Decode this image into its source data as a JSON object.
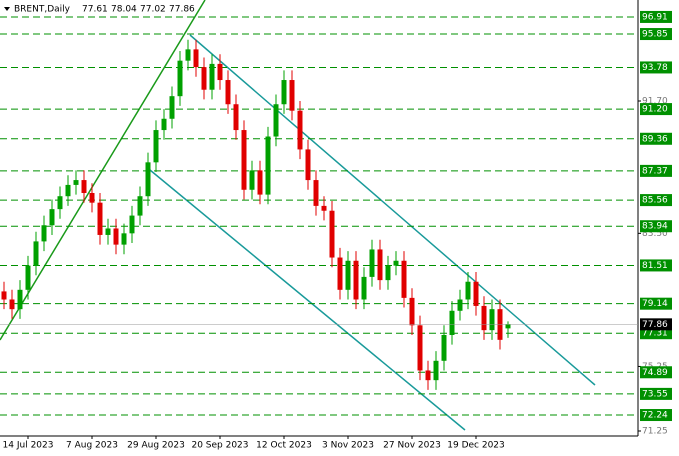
{
  "chart_data": {
    "type": "candlestick",
    "title": "BRENT,Daily",
    "categories": [
      null,
      null,
      null,
      "14 Jul 2023",
      null,
      null,
      null,
      null,
      null,
      null,
      null,
      "7 Aug 2023",
      null,
      null,
      null,
      null,
      null,
      null,
      null,
      "29 Aug 2023",
      null,
      null,
      null,
      null,
      null,
      null,
      null,
      "20 Sep 2023",
      null,
      null,
      null,
      null,
      null,
      null,
      null,
      "12 Oct 2023",
      null,
      null,
      null,
      null,
      null,
      null,
      null,
      "3 Nov 2023",
      null,
      null,
      null,
      null,
      null,
      null,
      null,
      "27 Nov 2023",
      null,
      null,
      null,
      null,
      null,
      null,
      null,
      "19 Dec 2023",
      null,
      null,
      null,
      null
    ],
    "open": [
      79.9,
      79.4,
      78.8,
      80.0,
      81.5,
      83.0,
      84.0,
      85.0,
      85.8,
      86.5,
      86.8,
      86.0,
      85.4,
      83.4,
      83.8,
      82.8,
      83.5,
      84.6,
      85.8,
      87.9,
      89.9,
      90.6,
      92.0,
      94.2,
      94.9,
      93.8,
      92.4,
      94.0,
      93.0,
      91.5,
      89.9,
      86.2,
      87.4,
      85.9,
      89.5,
      91.5,
      93.0,
      91.1,
      88.7,
      86.8,
      85.2,
      84.9,
      82.0,
      80.0,
      81.8,
      79.4,
      80.8,
      82.5,
      80.6,
      81.5,
      81.8,
      79.5,
      77.8,
      75.0,
      74.4,
      75.6,
      77.2,
      78.7,
      79.4,
      80.5,
      79.0,
      77.5,
      78.8,
      77.61
    ],
    "high": [
      80.5,
      80.0,
      80.6,
      82.1,
      83.6,
      84.6,
      85.6,
      86.4,
      87.1,
      87.4,
      87.4,
      86.6,
      86.0,
      84.4,
      84.4,
      84.1,
      85.2,
      86.4,
      88.5,
      90.5,
      91.2,
      92.6,
      94.8,
      95.5,
      95.5,
      94.4,
      94.6,
      94.6,
      93.6,
      92.1,
      90.5,
      88.0,
      88.0,
      90.1,
      92.1,
      93.6,
      93.6,
      91.7,
      89.3,
      87.4,
      85.8,
      85.5,
      82.6,
      82.4,
      82.4,
      81.4,
      83.1,
      83.1,
      82.1,
      82.4,
      82.4,
      80.1,
      78.4,
      75.6,
      76.2,
      77.8,
      79.3,
      80.0,
      81.1,
      81.1,
      79.6,
      79.4,
      79.4,
      78.04
    ],
    "low": [
      78.8,
      78.2,
      78.2,
      79.4,
      80.9,
      82.4,
      83.4,
      84.4,
      85.2,
      85.9,
      85.4,
      84.8,
      82.8,
      82.8,
      82.2,
      82.2,
      82.9,
      84.0,
      85.2,
      87.3,
      89.3,
      90.0,
      91.4,
      93.6,
      93.2,
      91.8,
      91.8,
      92.4,
      90.9,
      89.3,
      85.6,
      85.6,
      85.3,
      85.3,
      88.9,
      90.9,
      90.5,
      88.1,
      86.2,
      84.6,
      84.3,
      81.4,
      79.4,
      79.4,
      78.8,
      78.8,
      80.2,
      80.0,
      80.0,
      80.9,
      78.9,
      77.2,
      74.4,
      73.8,
      73.8,
      75.0,
      76.6,
      78.1,
      78.8,
      78.4,
      76.9,
      76.9,
      76.3,
      77.02
    ],
    "close": [
      79.4,
      78.8,
      80.0,
      81.5,
      83.0,
      84.0,
      85.0,
      85.8,
      86.5,
      86.8,
      86.0,
      85.4,
      83.4,
      83.8,
      82.8,
      83.5,
      84.6,
      85.8,
      87.9,
      89.9,
      90.6,
      92.0,
      94.2,
      94.9,
      93.8,
      92.4,
      94.0,
      93.0,
      91.5,
      89.9,
      86.2,
      87.4,
      85.9,
      89.5,
      91.5,
      93.0,
      91.1,
      88.7,
      86.8,
      85.2,
      84.9,
      82.0,
      80.0,
      81.8,
      79.4,
      80.8,
      82.5,
      80.6,
      81.5,
      81.8,
      79.5,
      77.8,
      75.0,
      74.4,
      75.6,
      77.2,
      78.7,
      79.4,
      80.5,
      79.0,
      77.5,
      78.8,
      76.9,
      77.86
    ],
    "up_color": "#00a000",
    "down_color": "#e00000",
    "levels": [
      96.91,
      95.85,
      93.78,
      {
        "value": 91.2,
        "label": "91.20"
      },
      89.36,
      87.37,
      85.56,
      83.94,
      81.51,
      79.14,
      77.31,
      74.89,
      73.55,
      72.24
    ],
    "level_color": "#009000",
    "ylim": [
      70.94,
      97.96
    ],
    "yticks": [
      {
        "value": 91.7,
        "label": "91.70"
      },
      {
        "value": 83.5,
        "label": "83.50"
      },
      75.25,
      71.25
    ]
  }
}
